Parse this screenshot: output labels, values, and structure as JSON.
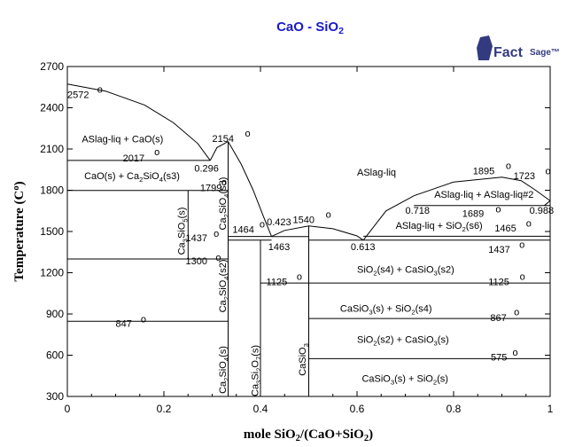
{
  "chart_data": {
    "type": "phase-diagram",
    "title_parts": [
      "CaO - SiO",
      "2"
    ],
    "logo": {
      "text": "Fact",
      "suffix": "Sage",
      "mark": "™"
    },
    "xlabel_parts": [
      "mole SiO",
      "2",
      "/(CaO+SiO",
      "2",
      ")"
    ],
    "ylabel_parts": [
      "Temperature (C",
      "o",
      ")"
    ],
    "xlim": [
      0,
      1
    ],
    "ylim": [
      300,
      2700
    ],
    "x_ticks": [
      {
        "value": 0,
        "label": "0"
      },
      {
        "value": 0.2,
        "label": "0.2"
      },
      {
        "value": 0.4,
        "label": "0.4"
      },
      {
        "value": 0.6,
        "label": "0.6"
      },
      {
        "value": 0.8,
        "label": "0.8"
      },
      {
        "value": 1,
        "label": "1"
      }
    ],
    "y_ticks": [
      {
        "value": 300,
        "label": "300"
      },
      {
        "value": 600,
        "label": "600"
      },
      {
        "value": 900,
        "label": "900"
      },
      {
        "value": 1200,
        "label": "1200"
      },
      {
        "value": 1500,
        "label": "1500"
      },
      {
        "value": 1800,
        "label": "1800"
      },
      {
        "value": 2100,
        "label": "2100"
      },
      {
        "value": 2400,
        "label": "2400"
      },
      {
        "value": 2700,
        "label": "2700"
      }
    ],
    "lines": [
      {
        "points": [
          [
            0,
            2572
          ],
          [
            0.08,
            2520
          ],
          [
            0.16,
            2420
          ],
          [
            0.22,
            2290
          ],
          [
            0.27,
            2140
          ],
          [
            0.296,
            2017
          ]
        ]
      },
      {
        "points": [
          [
            0.296,
            2017
          ],
          [
            0.31,
            2110
          ],
          [
            0.333,
            2154
          ]
        ]
      },
      {
        "points": [
          [
            0.333,
            2154
          ],
          [
            0.36,
            1990
          ],
          [
            0.385,
            1800
          ],
          [
            0.405,
            1620
          ],
          [
            0.423,
            1464
          ]
        ]
      },
      {
        "points": [
          [
            0.423,
            1464
          ],
          [
            0.45,
            1508
          ],
          [
            0.5,
            1540
          ],
          [
            0.55,
            1520
          ],
          [
            0.6,
            1468
          ],
          [
            0.613,
            1437
          ]
        ]
      },
      {
        "points": [
          [
            0.613,
            1437
          ],
          [
            0.66,
            1650
          ],
          [
            0.718,
            1760
          ],
          [
            0.8,
            1860
          ],
          [
            0.9,
            1895
          ],
          [
            0.94,
            1870
          ],
          [
            0.97,
            1800
          ],
          [
            1,
            1723
          ]
        ]
      },
      {
        "points": [
          [
            0.718,
            1689
          ],
          [
            1,
            1689
          ]
        ]
      },
      {
        "points": [
          [
            0.988,
            1689
          ],
          [
            1,
            1723
          ]
        ]
      },
      {
        "points": [
          [
            0,
            2017
          ],
          [
            0.296,
            2017
          ]
        ]
      },
      {
        "points": [
          [
            0,
            1799
          ],
          [
            0.333,
            1799
          ]
        ]
      },
      {
        "points": [
          [
            0,
            1300
          ],
          [
            0.333,
            1300
          ]
        ]
      },
      {
        "points": [
          [
            0,
            847
          ],
          [
            0.333,
            847
          ]
        ]
      },
      {
        "points": [
          [
            0.25,
            1799
          ],
          [
            0.25,
            1300
          ]
        ]
      },
      {
        "points": [
          [
            0.333,
            300
          ],
          [
            0.333,
            2154
          ]
        ]
      },
      {
        "points": [
          [
            0.333,
            1464
          ],
          [
            0.423,
            1464
          ]
        ]
      },
      {
        "points": [
          [
            0.333,
            1437
          ],
          [
            0.423,
            1437
          ]
        ]
      },
      {
        "points": [
          [
            0.4,
            1437
          ],
          [
            0.4,
            300
          ]
        ]
      },
      {
        "points": [
          [
            0.4,
            1125
          ],
          [
            1,
            1125
          ]
        ]
      },
      {
        "points": [
          [
            0.5,
            1540
          ],
          [
            0.5,
            300
          ]
        ]
      },
      {
        "points": [
          [
            0.423,
            1463
          ],
          [
            0.5,
            1463
          ]
        ]
      },
      {
        "points": [
          [
            0.5,
            1437
          ],
          [
            1,
            1437
          ]
        ]
      },
      {
        "points": [
          [
            0.613,
            1465
          ],
          [
            1,
            1465
          ]
        ]
      },
      {
        "points": [
          [
            0.5,
            867
          ],
          [
            1,
            867
          ]
        ]
      },
      {
        "points": [
          [
            0.5,
            575
          ],
          [
            1,
            575
          ]
        ]
      }
    ],
    "annotations": [
      {
        "parts": [
          "2572"
        ],
        "x": 0.0,
        "y": 2470
      },
      {
        "parts": [
          "o"
        ],
        "sup": true,
        "x": 0.062,
        "y": 2510
      },
      {
        "parts": [
          "2154"
        ],
        "x": 0.3,
        "y": 2152
      },
      {
        "parts": [
          "o"
        ],
        "sup": true,
        "x": 0.368,
        "y": 2190
      },
      {
        "parts": [
          "ASlag-liq + CaO(s)"
        ],
        "x": 0.03,
        "y": 2150
      },
      {
        "parts": [
          "2017"
        ],
        "x": 0.115,
        "y": 2010
      },
      {
        "parts": [
          "o"
        ],
        "sup": true,
        "x": 0.18,
        "y": 2055
      },
      {
        "parts": [
          "0.296"
        ],
        "x": 0.263,
        "y": 1935,
        "small": true
      },
      {
        "parts": [
          "CaO(s) + Ca",
          "2",
          "SiO",
          "4",
          "(s3)"
        ],
        "x": 0.035,
        "y": 1880
      },
      {
        "parts": [
          "1799"
        ],
        "x": 0.275,
        "y": 1795
      },
      {
        "parts": [
          "o"
        ],
        "sup": true,
        "x": 0.319,
        "y": 1835
      },
      {
        "parts": [
          "1437"
        ],
        "x": 0.245,
        "y": 1430
      },
      {
        "parts": [
          "o"
        ],
        "sup": true,
        "x": 0.303,
        "y": 1462
      },
      {
        "parts": [
          "1464"
        ],
        "x": 0.342,
        "y": 1490
      },
      {
        "parts": [
          "o"
        ],
        "sup": true,
        "x": 0.398,
        "y": 1528
      },
      {
        "parts": [
          "0.423"
        ],
        "x": 0.413,
        "y": 1545,
        "small": true
      },
      {
        "parts": [
          "1463"
        ],
        "x": 0.416,
        "y": 1363
      },
      {
        "parts": [
          "1540"
        ],
        "x": 0.467,
        "y": 1560
      },
      {
        "parts": [
          "o"
        ],
        "sup": true,
        "x": 0.535,
        "y": 1600
      },
      {
        "parts": [
          "1300"
        ],
        "x": 0.245,
        "y": 1260
      },
      {
        "parts": [
          "o"
        ],
        "sup": true,
        "x": 0.307,
        "y": 1287
      },
      {
        "parts": [
          "1125"
        ],
        "x": 0.412,
        "y": 1110
      },
      {
        "parts": [
          "o"
        ],
        "sup": true,
        "x": 0.475,
        "y": 1150
      },
      {
        "parts": [
          "847"
        ],
        "x": 0.1,
        "y": 805
      },
      {
        "parts": [
          "o"
        ],
        "sup": true,
        "x": 0.152,
        "y": 840
      },
      {
        "parts": [
          "ASlag-liq"
        ],
        "x": 0.6,
        "y": 1905
      },
      {
        "parts": [
          "1895"
        ],
        "x": 0.84,
        "y": 1915
      },
      {
        "parts": [
          "o"
        ],
        "sup": true,
        "x": 0.908,
        "y": 1955
      },
      {
        "parts": [
          "1723"
        ],
        "x": 0.924,
        "y": 1880
      },
      {
        "parts": [
          "o"
        ],
        "sup": true,
        "x": 0.99,
        "y": 1915
      },
      {
        "parts": [
          "ASlag-liq + ASlag-liq#2"
        ],
        "x": 0.76,
        "y": 1745
      },
      {
        "parts": [
          "0.718"
        ],
        "x": 0.7,
        "y": 1630,
        "small": true
      },
      {
        "parts": [
          "1689"
        ],
        "x": 0.818,
        "y": 1605
      },
      {
        "parts": [
          "o"
        ],
        "sup": true,
        "x": 0.887,
        "y": 1640
      },
      {
        "parts": [
          "0.988"
        ],
        "x": 0.957,
        "y": 1630,
        "small": true
      },
      {
        "parts": [
          "ASlag-liq + SiO",
          "2",
          "(s6)"
        ],
        "x": 0.68,
        "y": 1520
      },
      {
        "parts": [
          "1465"
        ],
        "x": 0.885,
        "y": 1500
      },
      {
        "parts": [
          "o"
        ],
        "sup": true,
        "x": 0.95,
        "y": 1535
      },
      {
        "parts": [
          "0.613"
        ],
        "x": 0.587,
        "y": 1365,
        "small": true
      },
      {
        "parts": [
          "1437"
        ],
        "x": 0.872,
        "y": 1345
      },
      {
        "parts": [
          "o"
        ],
        "sup": true,
        "x": 0.936,
        "y": 1380
      },
      {
        "parts": [
          "SiO",
          "2",
          "(s4) + CaSiO",
          "3",
          "(s2)"
        ],
        "x": 0.6,
        "y": 1200
      },
      {
        "parts": [
          "1125"
        ],
        "x": 0.872,
        "y": 1110
      },
      {
        "parts": [
          "o"
        ],
        "sup": true,
        "x": 0.937,
        "y": 1150
      },
      {
        "parts": [
          "CaSiO",
          "3",
          "(s) + SiO",
          "2",
          "(s4)"
        ],
        "x": 0.565,
        "y": 915
      },
      {
        "parts": [
          "867"
        ],
        "x": 0.876,
        "y": 850
      },
      {
        "parts": [
          "o"
        ],
        "sup": true,
        "x": 0.925,
        "y": 890
      },
      {
        "parts": [
          "SiO",
          "2",
          "(s2) + CaSiO",
          "3",
          "(s)"
        ],
        "x": 0.6,
        "y": 690
      },
      {
        "parts": [
          "575"
        ],
        "x": 0.877,
        "y": 560
      },
      {
        "parts": [
          "o"
        ],
        "sup": true,
        "x": 0.922,
        "y": 598
      },
      {
        "parts": [
          "CaSiO",
          "3",
          "(s) + SiO",
          "2",
          "(s)"
        ],
        "x": 0.61,
        "y": 405
      }
    ],
    "vertical_labels": [
      {
        "parts": [
          "Ca",
          "3",
          "SiO",
          "5",
          "(s)"
        ],
        "x": 0.243,
        "y": 1330
      },
      {
        "parts": [
          "Ca",
          "2",
          "SiO",
          "4",
          "(s3)"
        ],
        "x": 0.328,
        "y": 1510
      },
      {
        "parts": [
          "Ca",
          "2",
          "SiO",
          "4",
          "(s2)"
        ],
        "x": 0.328,
        "y": 910
      },
      {
        "parts": [
          "Ca",
          "2",
          "SiO",
          "4",
          "(s)"
        ],
        "x": 0.328,
        "y": 320
      },
      {
        "parts": [
          "Ca",
          "3",
          "Si",
          "2",
          "O",
          "7",
          "(s)"
        ],
        "x": 0.395,
        "y": 300
      },
      {
        "parts": [
          "CaSiO",
          "3"
        ],
        "x": 0.494,
        "y": 450
      }
    ]
  }
}
